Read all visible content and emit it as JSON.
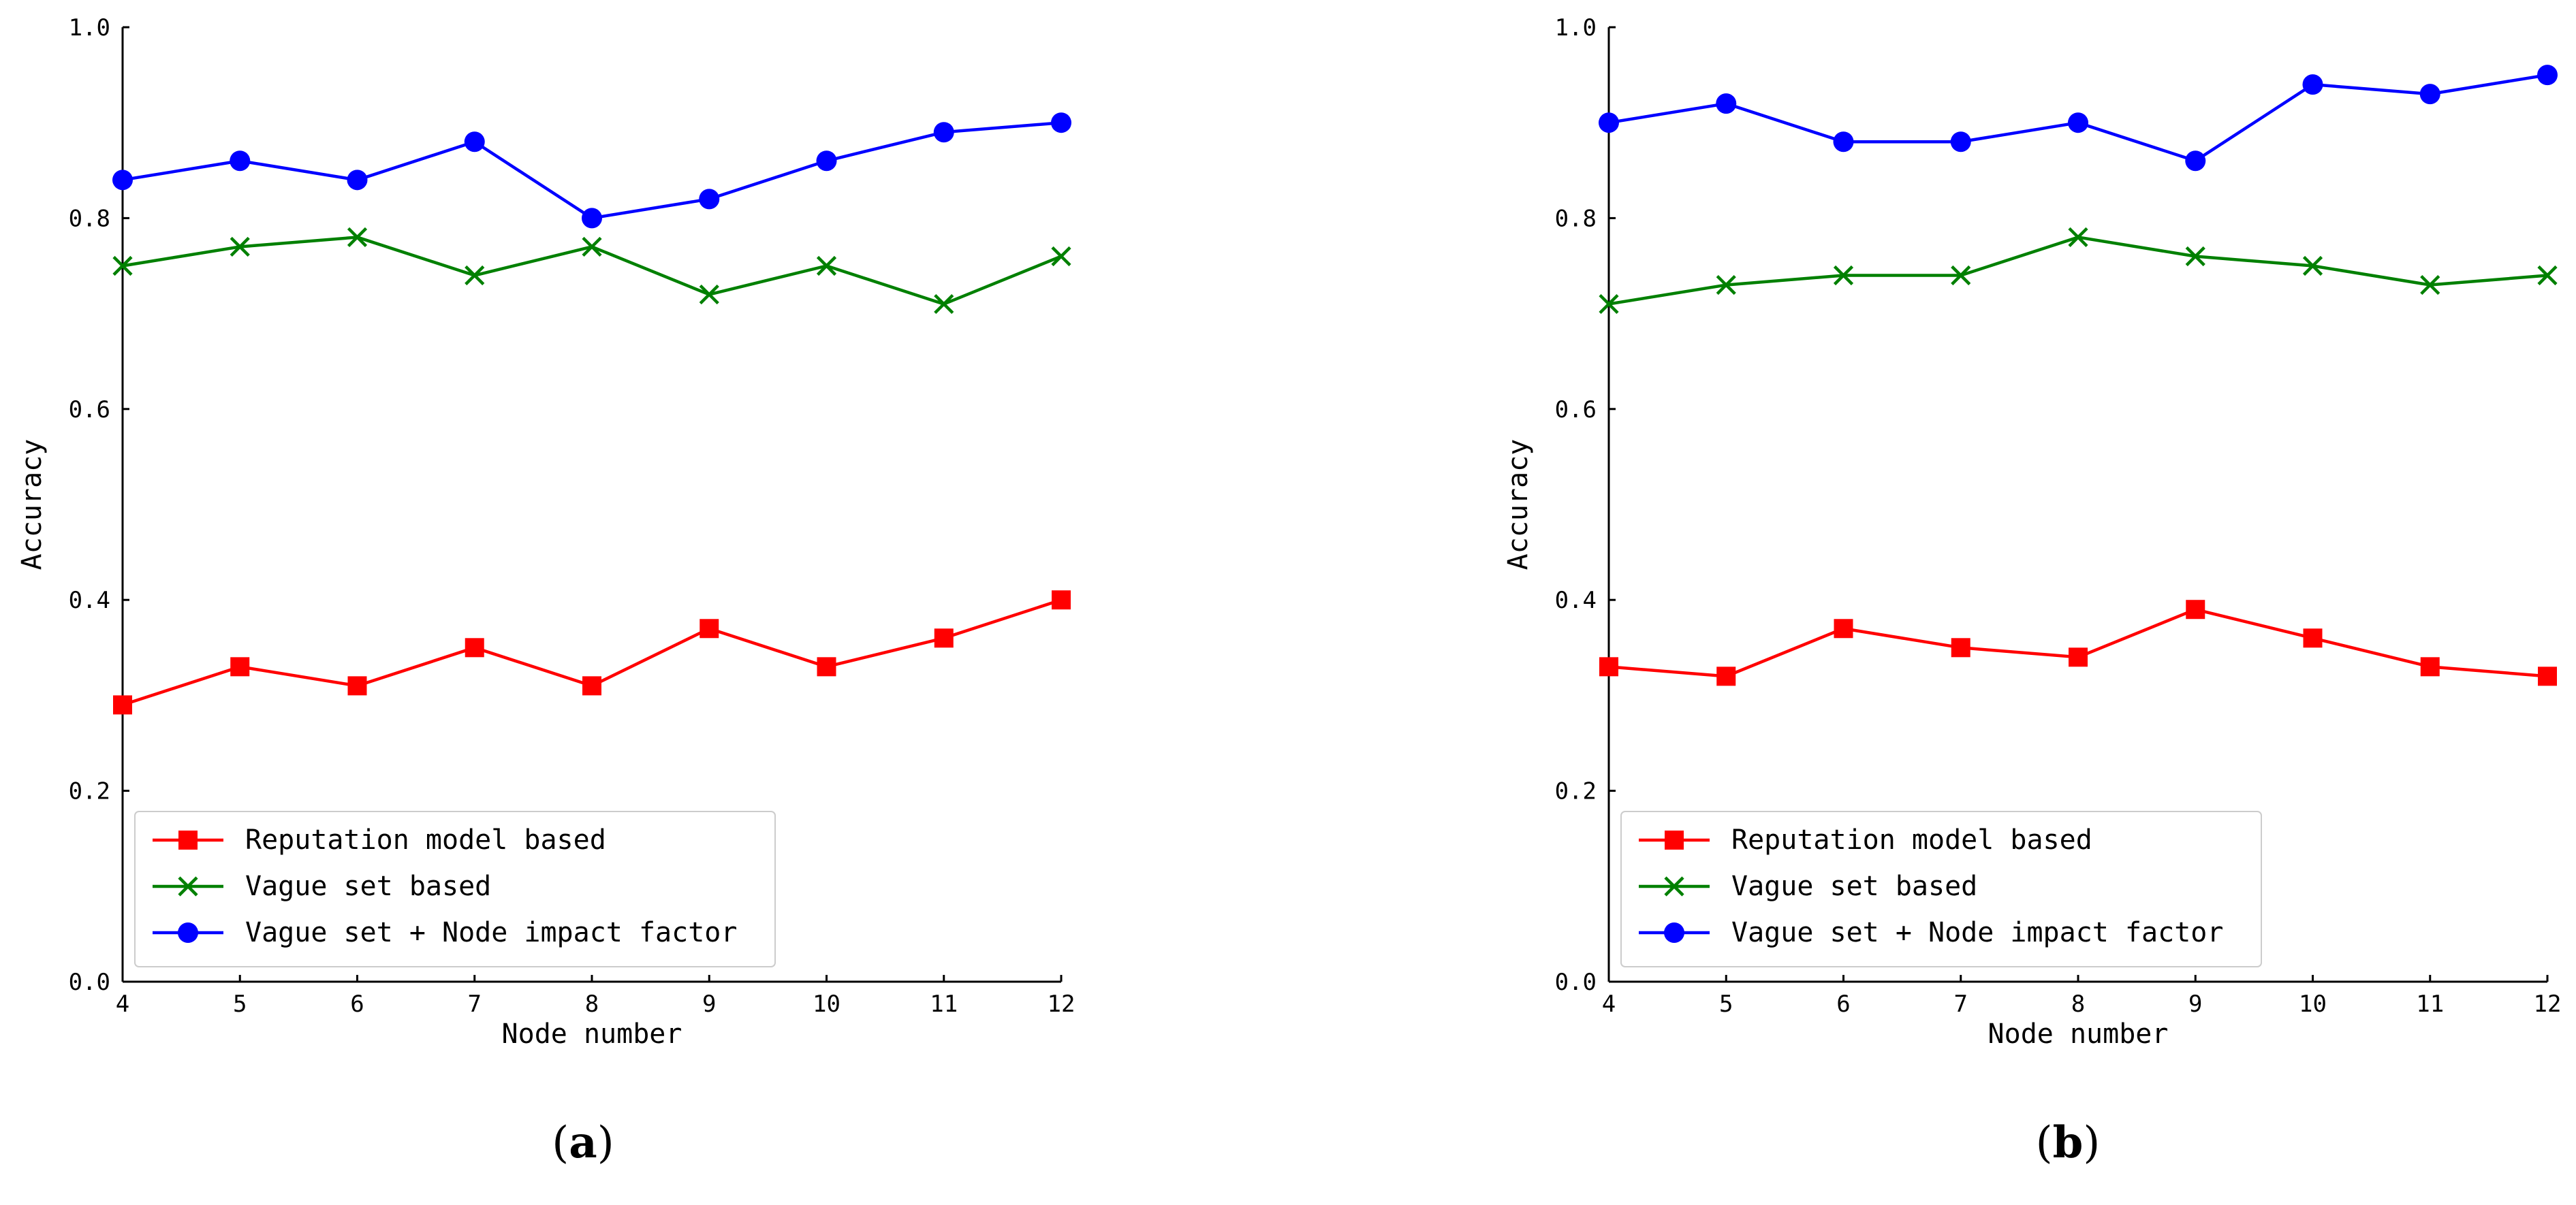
{
  "chart_data": [
    {
      "type": "line",
      "panel_label": "a",
      "caption_open": "(",
      "caption_close": ")",
      "x": [
        4,
        5,
        6,
        7,
        8,
        9,
        10,
        11,
        12
      ],
      "xlabel": "Node number",
      "ylabel": "Accuracy",
      "xlim": [
        4,
        12
      ],
      "ylim": [
        0.0,
        1.0
      ],
      "x_ticks": [
        "4",
        "5",
        "6",
        "7",
        "8",
        "9",
        "10",
        "11",
        "12"
      ],
      "y_ticks": [
        "0.0",
        "0.2",
        "0.4",
        "0.6",
        "0.8",
        "1.0"
      ],
      "grid": false,
      "legend_position": "lower-left",
      "series": [
        {
          "name": "Reputation model based",
          "color": "#ff0000",
          "marker": "square",
          "values": [
            0.29,
            0.33,
            0.31,
            0.35,
            0.31,
            0.37,
            0.33,
            0.36,
            0.4
          ]
        },
        {
          "name": "Vague set based",
          "color": "#008000",
          "marker": "x",
          "values": [
            0.75,
            0.77,
            0.78,
            0.74,
            0.77,
            0.72,
            0.75,
            0.71,
            0.76
          ]
        },
        {
          "name": "Vague set + Node impact factor",
          "color": "#0000ff",
          "marker": "circle",
          "values": [
            0.84,
            0.86,
            0.84,
            0.88,
            0.8,
            0.82,
            0.86,
            0.89,
            0.9
          ]
        }
      ]
    },
    {
      "type": "line",
      "panel_label": "b",
      "caption_open": "(",
      "caption_close": ")",
      "x": [
        4,
        5,
        6,
        7,
        8,
        9,
        10,
        11,
        12
      ],
      "xlabel": "Node number",
      "ylabel": "Accuracy",
      "xlim": [
        4,
        12
      ],
      "ylim": [
        0.0,
        1.0
      ],
      "x_ticks": [
        "4",
        "5",
        "6",
        "7",
        "8",
        "9",
        "10",
        "11",
        "12"
      ],
      "y_ticks": [
        "0.0",
        "0.2",
        "0.4",
        "0.6",
        "0.8",
        "1.0"
      ],
      "grid": false,
      "legend_position": "lower-left",
      "series": [
        {
          "name": "Reputation model based",
          "color": "#ff0000",
          "marker": "square",
          "values": [
            0.33,
            0.32,
            0.37,
            0.35,
            0.34,
            0.39,
            0.36,
            0.33,
            0.32
          ]
        },
        {
          "name": "Vague set based",
          "color": "#008000",
          "marker": "x",
          "values": [
            0.71,
            0.73,
            0.74,
            0.74,
            0.78,
            0.76,
            0.75,
            0.73,
            0.74
          ]
        },
        {
          "name": "Vague set + Node impact factor",
          "color": "#0000ff",
          "marker": "circle",
          "values": [
            0.9,
            0.92,
            0.88,
            0.88,
            0.9,
            0.86,
            0.94,
            0.93,
            0.95
          ]
        }
      ]
    }
  ]
}
